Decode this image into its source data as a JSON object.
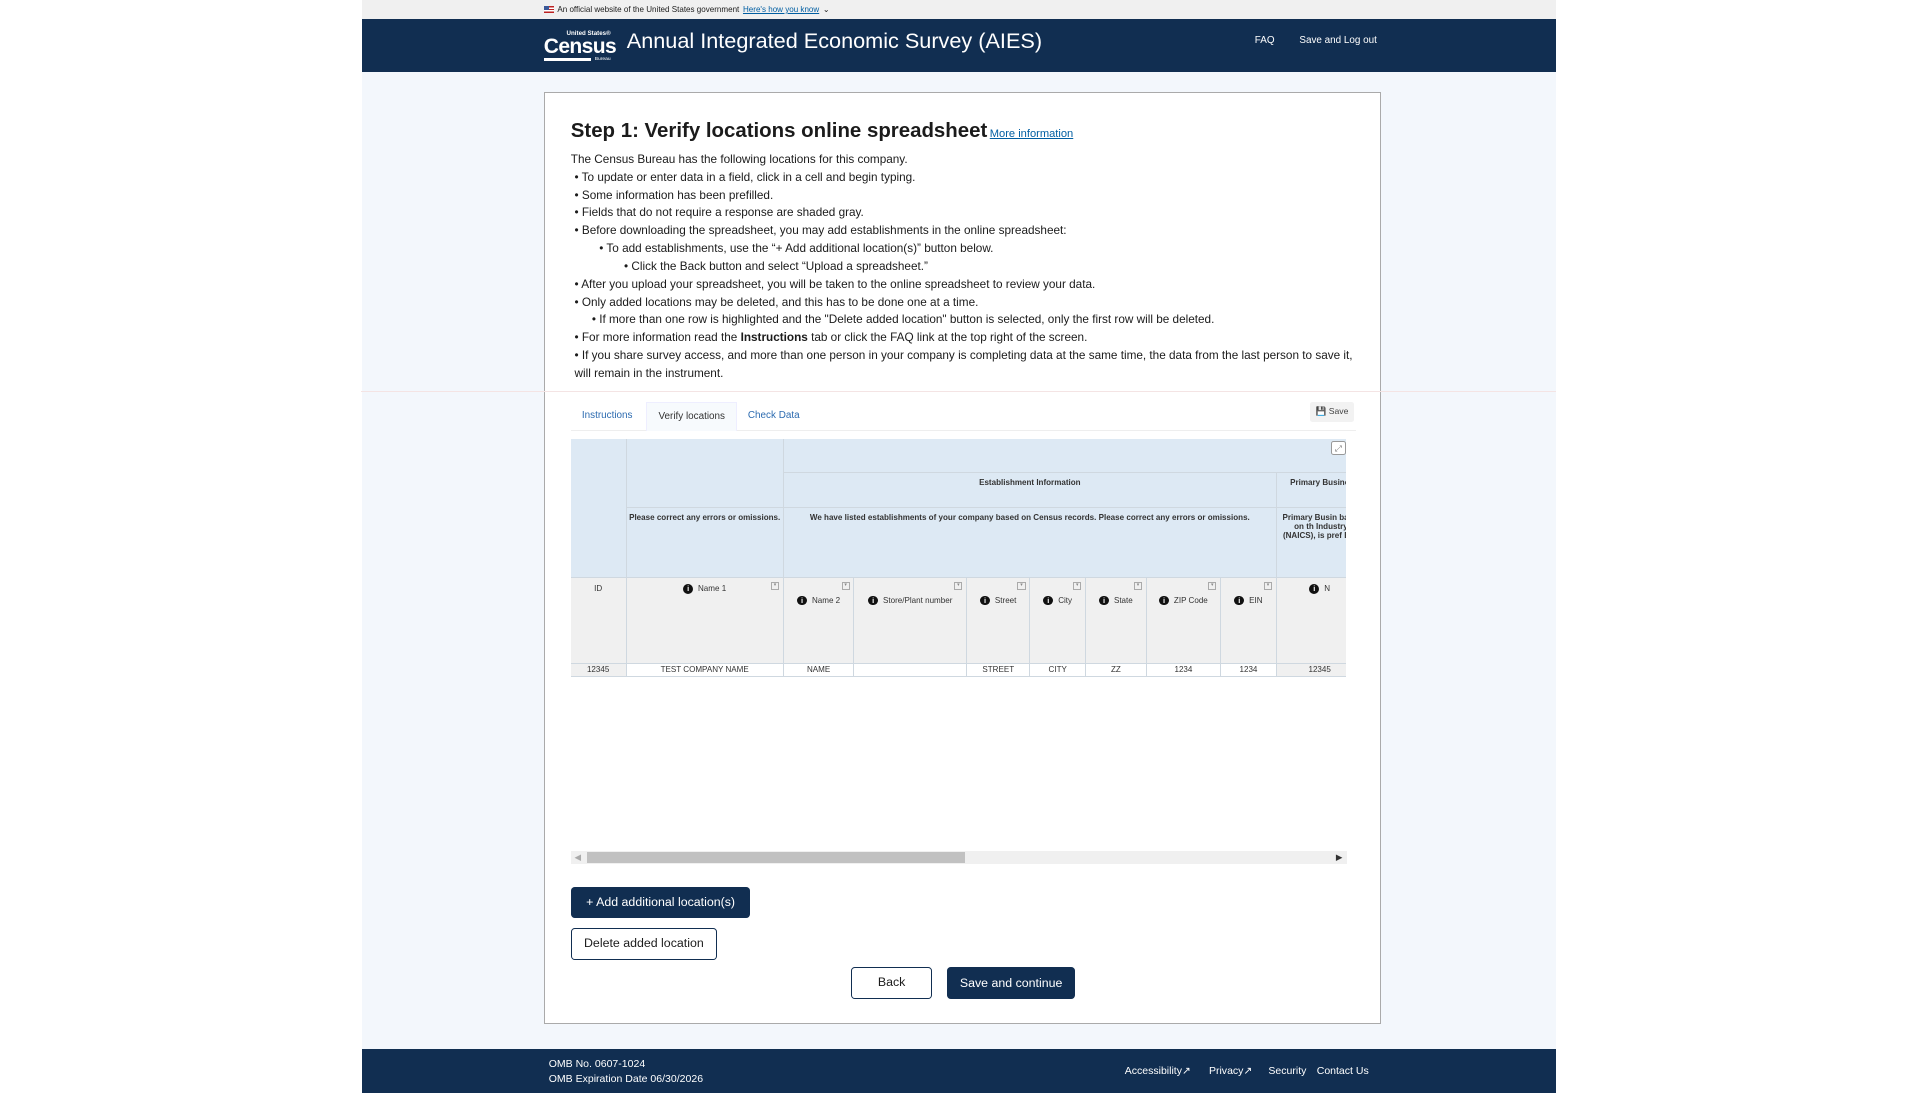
{
  "banner": {
    "text": "An official website of the United States government",
    "link": "Here's how you know",
    "flag_icon": "us-flag-icon"
  },
  "header": {
    "logo_top": "United States®",
    "logo_main": "Census",
    "logo_bottom": "Bureau",
    "title": "Annual Integrated Economic Survey (AIES)",
    "nav": [
      "FAQ",
      "Save and Log out"
    ]
  },
  "main": {
    "heading": "Step 1: Verify locations online spreadsheet",
    "more_info": "More information",
    "intro": "The Census Bureau has the following locations for this company.",
    "bullets": [
      "• To update or enter data in a field, click in a cell and begin typing.",
      "• Some information has been prefilled.",
      "• Fields that do not require a response are shaded gray.",
      "• Before downloading the spreadsheet, you may add establishments in the online spreadsheet:",
      "• To add establishments, use the “+ Add additional location(s)” button below.",
      "• Click the Back button and select “Upload a spreadsheet.”",
      "• After you upload your spreadsheet, you will be taken to the online spreadsheet to review your data.",
      "• Only added locations may be deleted, and this has to be done one at a time.",
      "• If more than one row is highlighted and the \"Delete added location\" button is selected, only the first row will be deleted.",
      "• If you share survey access, and more than one person in your company is completing data at the same time, the data from the last person to save it, will remain in the instrument."
    ],
    "faq_line": {
      "before": "• For more information read the ",
      "bold": "Instructions",
      "after": " tab or click the FAQ link at the top right of the screen."
    },
    "tabs": [
      {
        "label": "Instructions",
        "active": false
      },
      {
        "label": "Verify locations",
        "active": true
      },
      {
        "label": "Check Data",
        "active": false
      }
    ],
    "save_label": "Save",
    "grid": {
      "group_header": "Establishment Information",
      "group_header_2": "Primary Busine",
      "note_name1": "Please correct any errors or omissions.",
      "note_est": "We have listed establishments of your company based on Census records. Please correct any errors or omissions.",
      "note_primary": "Primary Busin based on th Industry Cla (NAICS), is pref Bure",
      "columns": [
        "ID",
        "Name 1",
        "Name 2",
        "Store/Plant number",
        "Street",
        "City",
        "State",
        "ZIP Code",
        "EIN",
        "N"
      ],
      "rows": [
        [
          "12345",
          "TEST COMPANY NAME",
          "NAME",
          "",
          "STREET",
          "CITY",
          "ZZ",
          "1234",
          "1234",
          "12345"
        ]
      ]
    },
    "buttons": {
      "add": "+ Add additional location(s)",
      "delete": "Delete added location",
      "back": "Back",
      "continue": "Save and continue"
    }
  },
  "footer": {
    "omb_no": "OMB No. 0607-1024",
    "omb_exp": "OMB Expiration Date 06/30/2026",
    "links": [
      "Accessibility",
      "Privacy",
      "Security",
      "Contact Us"
    ]
  },
  "colors": {
    "navy": "#112e51",
    "link": "#005ea2",
    "grid_header": "#dde9f4"
  }
}
